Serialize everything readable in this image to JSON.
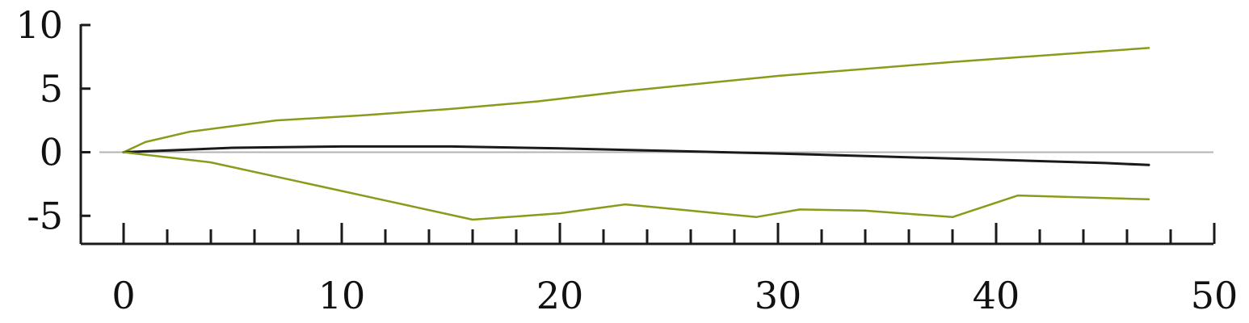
{
  "chart_data": {
    "type": "line",
    "title": "",
    "xlabel": "",
    "ylabel": "",
    "xlim": [
      -2,
      50
    ],
    "ylim": [
      -7,
      10
    ],
    "x_ticks": [
      0,
      10,
      20,
      30,
      40,
      50
    ],
    "x_minor_step": 2,
    "y_ticks": [
      10,
      5,
      0,
      -5
    ],
    "grid": false,
    "legend": "none",
    "series": [
      {
        "color": "#8c9a1c",
        "values": [
          [
            0,
            0
          ],
          [
            1,
            0.8
          ],
          [
            3,
            1.6
          ],
          [
            7,
            2.5
          ],
          [
            11,
            2.9
          ],
          [
            15,
            3.4
          ],
          [
            19,
            4.0
          ],
          [
            23,
            4.8
          ],
          [
            30,
            6.0
          ],
          [
            38,
            7.1
          ],
          [
            47,
            8.2
          ]
        ]
      },
      {
        "color": "#1a1a1a",
        "values": [
          [
            0,
            0
          ],
          [
            5,
            0.35
          ],
          [
            10,
            0.45
          ],
          [
            15,
            0.45
          ],
          [
            20,
            0.3
          ],
          [
            25,
            0.1
          ],
          [
            30,
            -0.1
          ],
          [
            35,
            -0.35
          ],
          [
            40,
            -0.6
          ],
          [
            45,
            -0.85
          ],
          [
            47,
            -1.0
          ]
        ]
      },
      {
        "color": "#8c9a1c",
        "values": [
          [
            0,
            0
          ],
          [
            4,
            -0.8
          ],
          [
            8,
            -2.3
          ],
          [
            12,
            -3.8
          ],
          [
            16,
            -5.3
          ],
          [
            20,
            -4.8
          ],
          [
            23,
            -4.1
          ],
          [
            26,
            -4.6
          ],
          [
            29,
            -5.1
          ],
          [
            31,
            -4.5
          ],
          [
            34,
            -4.6
          ],
          [
            38,
            -5.1
          ],
          [
            41,
            -3.4
          ],
          [
            47,
            -3.7
          ]
        ]
      }
    ],
    "reference_line": {
      "y": 0,
      "color": "#b3b3b3"
    }
  }
}
